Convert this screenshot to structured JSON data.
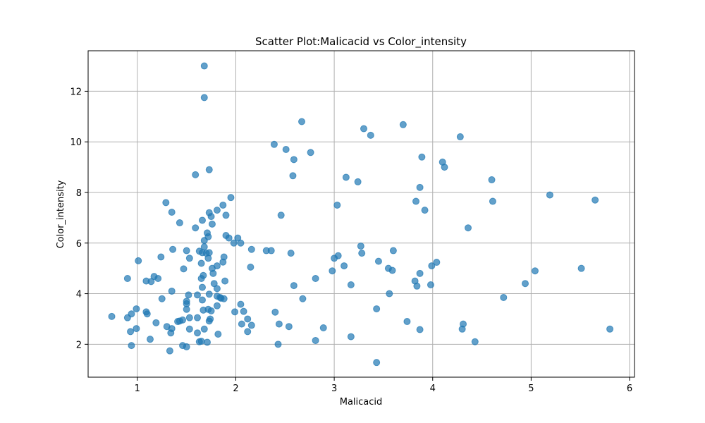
{
  "chart_data": {
    "type": "scatter",
    "title": "Scatter Plot:Malicacid vs Color_intensity",
    "xlabel": "Malicacid",
    "ylabel": "Color_intensity",
    "xlim": [
      0.5,
      6.05
    ],
    "ylim": [
      0.7,
      13.6
    ],
    "xticks": [
      1,
      2,
      3,
      4,
      5,
      6
    ],
    "yticks": [
      2,
      4,
      6,
      8,
      10,
      12
    ],
    "grid": true,
    "color": "#1f77b4",
    "points": [
      [
        1.68,
        13.0
      ],
      [
        1.68,
        11.75
      ],
      [
        2.67,
        10.8
      ],
      [
        3.3,
        10.52
      ],
      [
        3.7,
        10.68
      ],
      [
        3.37,
        10.26
      ],
      [
        4.28,
        10.2
      ],
      [
        2.39,
        9.9
      ],
      [
        2.51,
        9.7
      ],
      [
        2.76,
        9.58
      ],
      [
        2.59,
        9.3
      ],
      [
        3.89,
        9.4
      ],
      [
        4.1,
        9.2
      ],
      [
        4.12,
        9.0
      ],
      [
        1.59,
        8.7
      ],
      [
        1.73,
        8.9
      ],
      [
        2.58,
        8.66
      ],
      [
        3.12,
        8.6
      ],
      [
        3.24,
        8.42
      ],
      [
        4.6,
        8.5
      ],
      [
        3.87,
        8.2
      ],
      [
        1.95,
        7.8
      ],
      [
        5.19,
        7.9
      ],
      [
        5.65,
        7.7
      ],
      [
        3.83,
        7.65
      ],
      [
        4.61,
        7.65
      ],
      [
        1.29,
        7.6
      ],
      [
        1.87,
        7.5
      ],
      [
        3.03,
        7.5
      ],
      [
        1.35,
        7.22
      ],
      [
        1.73,
        7.2
      ],
      [
        1.81,
        7.3
      ],
      [
        1.9,
        7.1
      ],
      [
        2.46,
        7.1
      ],
      [
        1.75,
        7.05
      ],
      [
        1.66,
        6.9
      ],
      [
        1.43,
        6.8
      ],
      [
        1.76,
        6.75
      ],
      [
        1.59,
        6.6
      ],
      [
        3.92,
        7.3
      ],
      [
        4.36,
        6.6
      ],
      [
        1.71,
        6.4
      ],
      [
        1.72,
        6.25
      ],
      [
        1.9,
        6.3
      ],
      [
        1.93,
        6.2
      ],
      [
        1.68,
        6.1
      ],
      [
        2.02,
        6.2
      ],
      [
        1.98,
        6.0
      ],
      [
        2.05,
        6.0
      ],
      [
        1.68,
        5.85
      ],
      [
        3.27,
        5.88
      ],
      [
        1.36,
        5.75
      ],
      [
        1.5,
        5.7
      ],
      [
        1.63,
        5.68
      ],
      [
        1.66,
        5.62
      ],
      [
        1.7,
        5.6
      ],
      [
        1.73,
        5.62
      ],
      [
        2.16,
        5.75
      ],
      [
        2.31,
        5.7
      ],
      [
        2.36,
        5.7
      ],
      [
        2.56,
        5.6
      ],
      [
        3.28,
        5.6
      ],
      [
        3.6,
        5.7
      ],
      [
        1.24,
        5.45
      ],
      [
        1.53,
        5.4
      ],
      [
        1.72,
        5.4
      ],
      [
        1.88,
        5.45
      ],
      [
        3.0,
        5.4
      ],
      [
        3.04,
        5.5
      ],
      [
        1.01,
        5.3
      ],
      [
        1.65,
        5.2
      ],
      [
        1.87,
        5.25
      ],
      [
        3.45,
        5.28
      ],
      [
        4.04,
        5.24
      ],
      [
        3.99,
        5.1
      ],
      [
        1.81,
        5.1
      ],
      [
        1.76,
        5.0
      ],
      [
        2.15,
        5.05
      ],
      [
        3.1,
        5.1
      ],
      [
        3.55,
        5.0
      ],
      [
        3.59,
        4.92
      ],
      [
        5.04,
        4.9
      ],
      [
        5.51,
        5.0
      ],
      [
        1.47,
        4.98
      ],
      [
        2.98,
        4.9
      ],
      [
        3.87,
        4.8
      ],
      [
        1.77,
        4.8
      ],
      [
        1.67,
        4.72
      ],
      [
        1.17,
        4.68
      ],
      [
        0.9,
        4.6
      ],
      [
        1.21,
        4.6
      ],
      [
        2.81,
        4.6
      ],
      [
        1.09,
        4.5
      ],
      [
        1.14,
        4.48
      ],
      [
        1.65,
        4.6
      ],
      [
        1.89,
        4.5
      ],
      [
        3.82,
        4.5
      ],
      [
        4.94,
        4.4
      ],
      [
        1.78,
        4.4
      ],
      [
        2.59,
        4.32
      ],
      [
        3.17,
        4.35
      ],
      [
        3.84,
        4.3
      ],
      [
        3.98,
        4.35
      ],
      [
        1.66,
        4.25
      ],
      [
        1.81,
        4.2
      ],
      [
        1.35,
        4.1
      ],
      [
        1.52,
        3.95
      ],
      [
        1.61,
        3.95
      ],
      [
        1.73,
        3.98
      ],
      [
        1.81,
        3.9
      ],
      [
        3.56,
        4.0
      ],
      [
        1.84,
        3.85
      ],
      [
        1.85,
        3.82
      ],
      [
        1.88,
        3.8
      ],
      [
        1.25,
        3.8
      ],
      [
        2.68,
        3.8
      ],
      [
        4.72,
        3.85
      ],
      [
        1.5,
        3.7
      ],
      [
        1.66,
        3.75
      ],
      [
        1.5,
        3.6
      ],
      [
        1.81,
        3.52
      ],
      [
        2.05,
        3.58
      ],
      [
        0.99,
        3.4
      ],
      [
        1.5,
        3.38
      ],
      [
        1.67,
        3.35
      ],
      [
        1.72,
        3.38
      ],
      [
        1.75,
        3.32
      ],
      [
        3.43,
        3.4
      ],
      [
        1.09,
        3.28
      ],
      [
        1.1,
        3.2
      ],
      [
        0.94,
        3.2
      ],
      [
        1.99,
        3.28
      ],
      [
        2.08,
        3.3
      ],
      [
        2.4,
        3.27
      ],
      [
        0.74,
        3.1
      ],
      [
        0.9,
        3.05
      ],
      [
        1.53,
        3.05
      ],
      [
        1.61,
        3.05
      ],
      [
        1.74,
        3.0
      ],
      [
        2.12,
        3.0
      ],
      [
        1.41,
        2.9
      ],
      [
        1.43,
        2.92
      ],
      [
        1.46,
        2.96
      ],
      [
        1.73,
        2.92
      ],
      [
        3.74,
        2.9
      ],
      [
        1.19,
        2.85
      ],
      [
        2.06,
        2.8
      ],
      [
        2.16,
        2.75
      ],
      [
        2.44,
        2.8
      ],
      [
        2.54,
        2.7
      ],
      [
        4.31,
        2.8
      ],
      [
        1.3,
        2.7
      ],
      [
        1.35,
        2.62
      ],
      [
        0.99,
        2.62
      ],
      [
        1.53,
        2.6
      ],
      [
        1.68,
        2.6
      ],
      [
        2.89,
        2.65
      ],
      [
        3.87,
        2.58
      ],
      [
        4.3,
        2.6
      ],
      [
        5.8,
        2.6
      ],
      [
        0.93,
        2.5
      ],
      [
        1.34,
        2.45
      ],
      [
        1.61,
        2.45
      ],
      [
        1.82,
        2.4
      ],
      [
        2.12,
        2.5
      ],
      [
        3.17,
        2.3
      ],
      [
        1.13,
        2.2
      ],
      [
        1.63,
        2.1
      ],
      [
        1.65,
        2.12
      ],
      [
        1.71,
        2.08
      ],
      [
        2.81,
        2.15
      ],
      [
        4.43,
        2.1
      ],
      [
        2.43,
        2.0
      ],
      [
        1.46,
        1.95
      ],
      [
        1.5,
        1.9
      ],
      [
        0.94,
        1.95
      ],
      [
        1.33,
        1.74
      ],
      [
        3.43,
        1.28
      ]
    ]
  }
}
